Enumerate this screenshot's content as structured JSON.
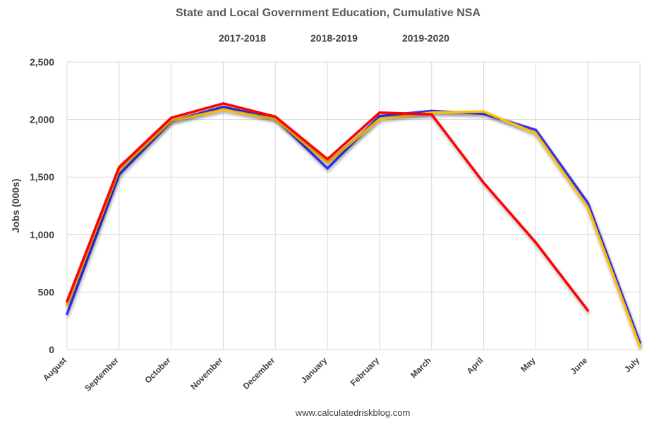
{
  "chart_data": {
    "type": "line",
    "title": "State and Local Government Education, Cumulative NSA",
    "ylabel": "Jobs (000s)",
    "xlabel": "",
    "source": "www.calculatedriskblog.com",
    "categories": [
      "August",
      "September",
      "October",
      "November",
      "December",
      "January",
      "February",
      "March",
      "April",
      "May",
      "June",
      "July"
    ],
    "ylim": [
      0,
      2500
    ],
    "yticks": [
      0,
      500,
      1000,
      1500,
      2000,
      2500
    ],
    "ytick_labels": [
      "0",
      "500",
      "1,000",
      "1,500",
      "2,000",
      "2,500"
    ],
    "grid": true,
    "legend_position": "top",
    "series": [
      {
        "name": "2017-2018",
        "color": "#3333ff",
        "values": [
          310,
          1520,
          1985,
          2110,
          2010,
          1575,
          2030,
          2075,
          2050,
          1910,
          1275,
          60
        ]
      },
      {
        "name": "2018-2019",
        "color": "#ffc000",
        "values": [
          390,
          1560,
          1990,
          2085,
          2005,
          1625,
          2005,
          2060,
          2070,
          1880,
          1235,
          25
        ]
      },
      {
        "name": "2019-2020",
        "color": "#ff0000",
        "values": [
          420,
          1585,
          2015,
          2140,
          2025,
          1655,
          2060,
          2045,
          1450,
          930,
          340,
          null
        ]
      }
    ]
  }
}
